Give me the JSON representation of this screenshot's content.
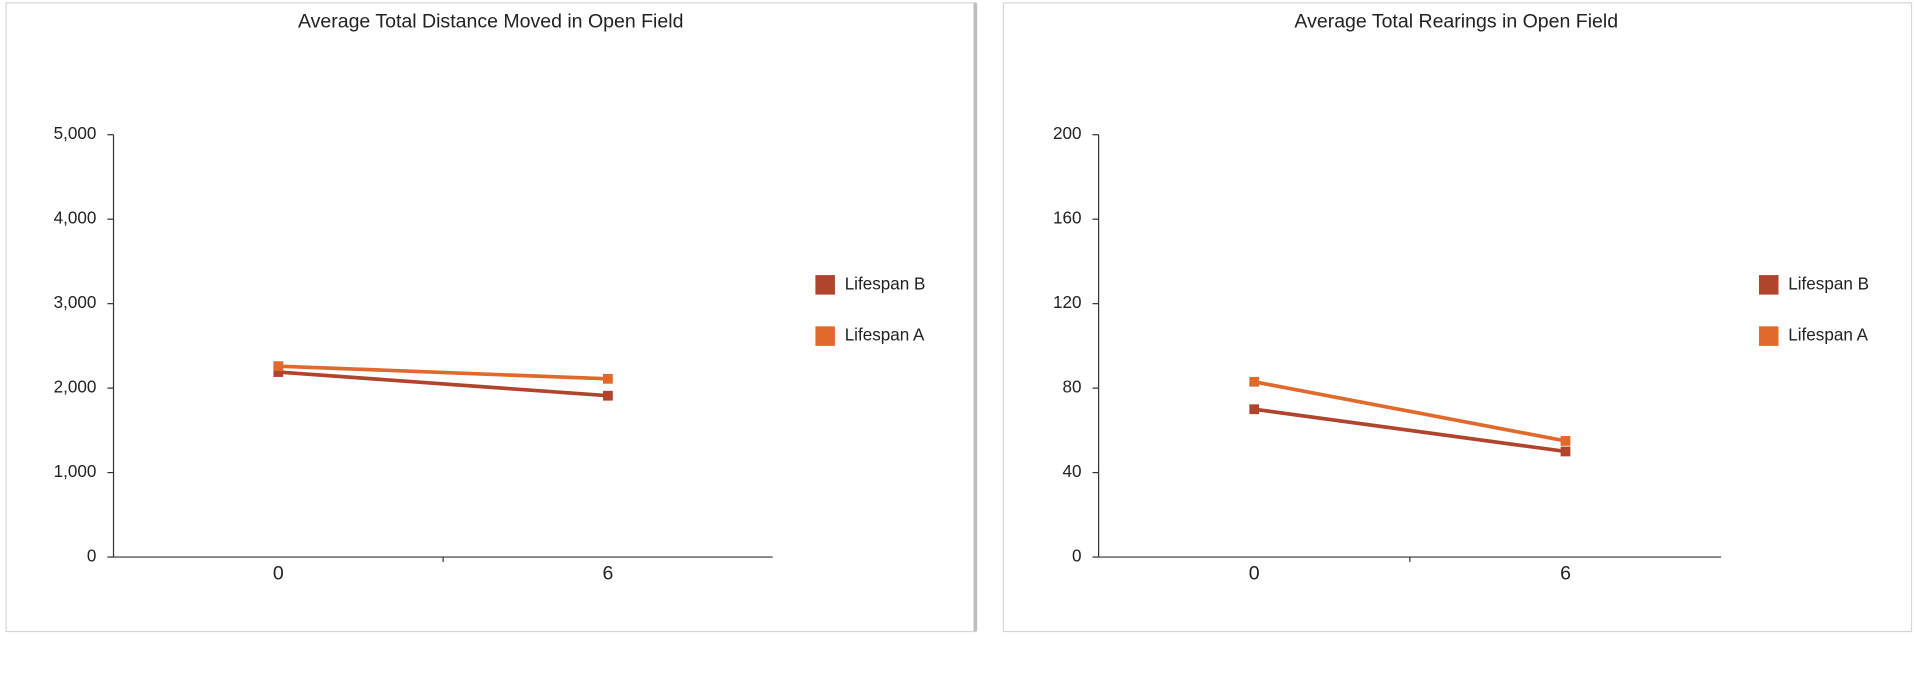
{
  "chart_data": [
    {
      "type": "line",
      "title": "Average Total Distance Moved in Open Field",
      "categories": [
        "0",
        "6"
      ],
      "series": [
        {
          "name": "Lifespan B",
          "color": "#b0442c",
          "values": [
            2190,
            1910
          ]
        },
        {
          "name": "Lifespan A",
          "color": "#e06a2c",
          "values": [
            2260,
            2110
          ]
        }
      ],
      "ylim": [
        0,
        5000
      ],
      "yticks": [
        0,
        {
          "value": 1000,
          "label": "1,000"
        },
        {
          "value": 2000,
          "label": "2,000"
        },
        {
          "value": 3000,
          "label": "3,000"
        },
        {
          "value": 4000,
          "label": "4,000"
        },
        {
          "value": 5000,
          "label": "5,000"
        }
      ],
      "legend": "right"
    },
    {
      "type": "line",
      "title": "Average Total Rearings in Open Field",
      "categories": [
        "0",
        "6"
      ],
      "series": [
        {
          "name": "Lifespan B",
          "color": "#b0442c",
          "values": [
            70,
            50
          ]
        },
        {
          "name": "Lifespan A",
          "color": "#e06a2c",
          "values": [
            83,
            55
          ]
        }
      ],
      "ylim": [
        0,
        200
      ],
      "yticks": [
        0,
        40,
        80,
        120,
        160,
        200
      ],
      "legend": "right"
    }
  ]
}
